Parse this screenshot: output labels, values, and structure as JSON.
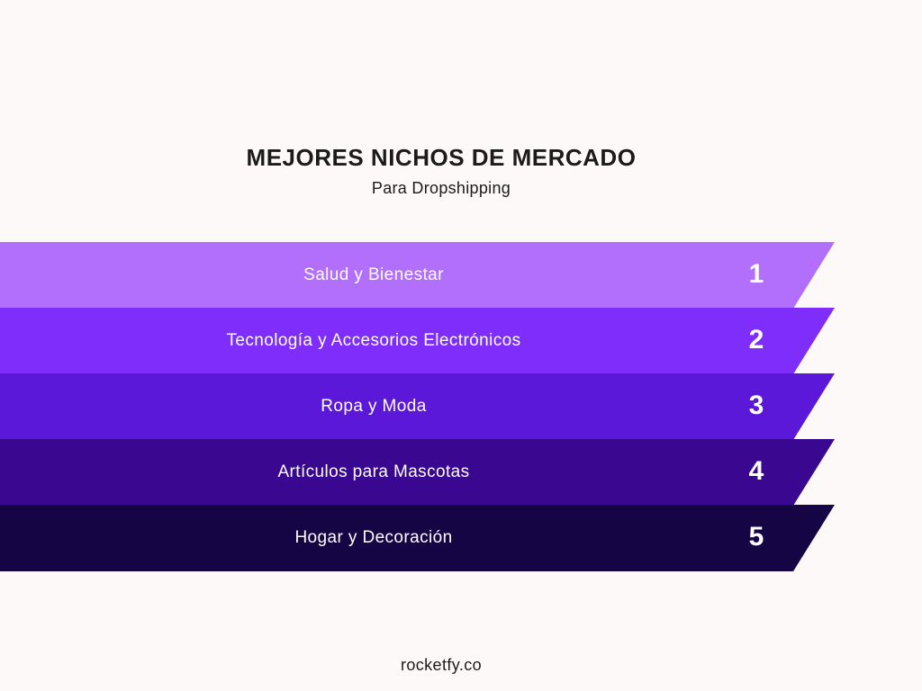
{
  "header": {
    "title": "MEJORES NICHOS DE MERCADO",
    "subtitle": "Para Dropshipping"
  },
  "niches": [
    {
      "rank": "1",
      "label": "Salud y Bienestar",
      "color": "#b26ffb"
    },
    {
      "rank": "2",
      "label": "Tecnología y Accesorios Electrónicos",
      "color": "#7e2dfa"
    },
    {
      "rank": "3",
      "label": "Ropa y Moda",
      "color": "#5c18d9"
    },
    {
      "rank": "4",
      "label": "Artículos para Mascotas",
      "color": "#3a0890"
    },
    {
      "rank": "5",
      "label": "Hogar y Decoración",
      "color": "#160545"
    }
  ],
  "footer": {
    "brand": "rocketfy.co"
  }
}
